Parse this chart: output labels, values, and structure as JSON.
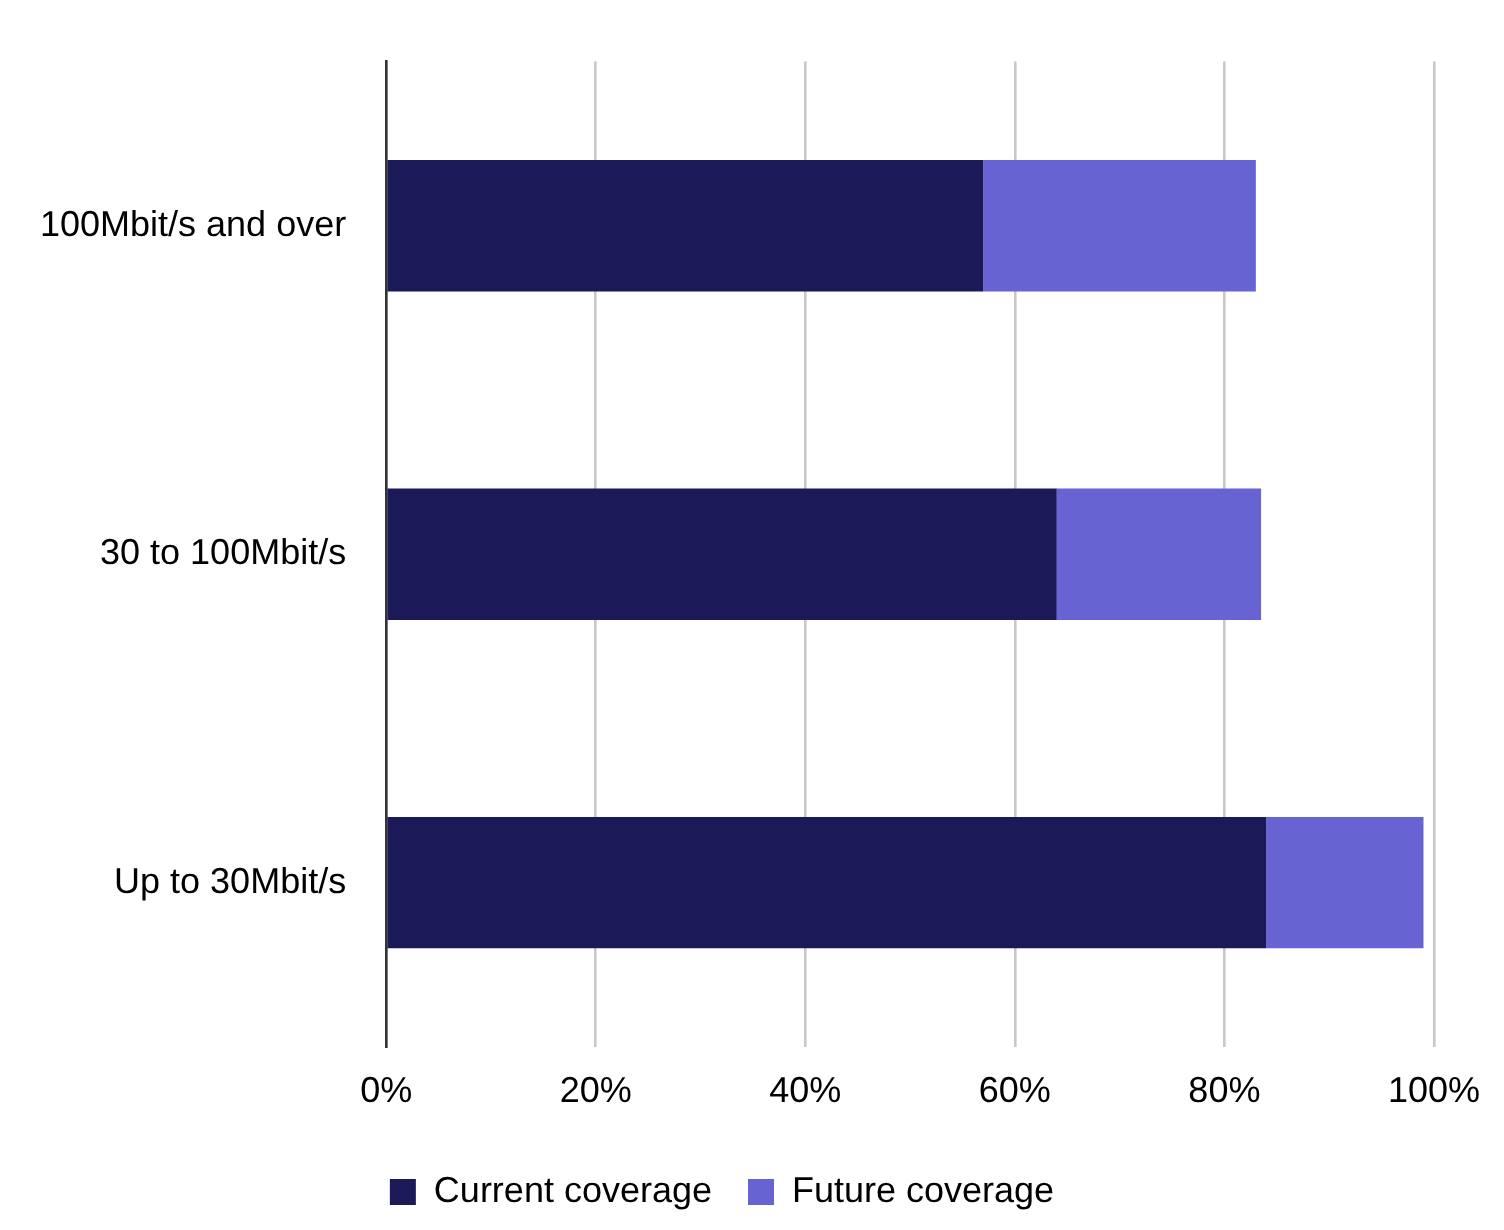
{
  "chart_data": {
    "type": "bar",
    "orientation": "horizontal",
    "stacked": true,
    "categories": [
      "100Mbit/s and over",
      "30 to 100Mbit/s",
      "Up to 30Mbit/s"
    ],
    "series": [
      {
        "name": "Current coverage",
        "color": "#1b1958",
        "values": [
          57,
          64,
          84
        ]
      },
      {
        "name": "Future coverage",
        "color": "#6863d3",
        "values": [
          26,
          19.5,
          15
        ]
      }
    ],
    "xlim": [
      0,
      100
    ],
    "xticks": [
      {
        "value": 0,
        "label": "0%"
      },
      {
        "value": 20,
        "label": "20%"
      },
      {
        "value": 40,
        "label": "40%"
      },
      {
        "value": 60,
        "label": "60%"
      },
      {
        "value": 80,
        "label": "80%"
      },
      {
        "value": 100,
        "label": "100%"
      }
    ],
    "grid": "x",
    "legend": "bottom"
  }
}
